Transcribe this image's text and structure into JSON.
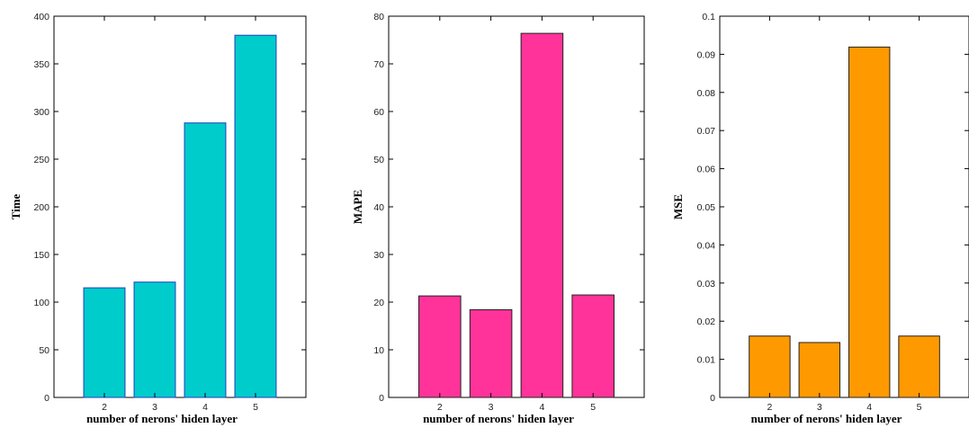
{
  "chart_data": [
    {
      "type": "bar",
      "categories": [
        "2",
        "3",
        "4",
        "5"
      ],
      "values": [
        115,
        121,
        288,
        380
      ],
      "xlabel": "number of nerons' hiden layer",
      "ylabel": "Time",
      "ylim": [
        0,
        400
      ],
      "yticks": [
        0,
        50,
        100,
        150,
        200,
        250,
        300,
        350,
        400
      ],
      "ytick_labels": [
        "0",
        "50",
        "100",
        "150",
        "200",
        "250",
        "300",
        "350",
        "400"
      ],
      "bar_color": "#00CCCC",
      "bar_edge_color": "#1f3fbf",
      "grid": false
    },
    {
      "type": "bar",
      "categories": [
        "2",
        "3",
        "4",
        "5"
      ],
      "values": [
        21.3,
        18.4,
        76.4,
        21.5
      ],
      "xlabel": "number of nerons' hiden layer",
      "ylabel": "MAPE",
      "ylim": [
        0,
        80
      ],
      "yticks": [
        0,
        10,
        20,
        30,
        40,
        50,
        60,
        70,
        80
      ],
      "ytick_labels": [
        "0",
        "10",
        "20",
        "30",
        "40",
        "50",
        "60",
        "70",
        "80"
      ],
      "bar_color": "#FF3399",
      "bar_edge_color": "#222222",
      "grid": false
    },
    {
      "type": "bar",
      "categories": [
        "2",
        "3",
        "4",
        "5"
      ],
      "values": [
        0.0161,
        0.0144,
        0.0919,
        0.0161
      ],
      "xlabel": "number of nerons' hiden layer",
      "ylabel": "MSE",
      "ylim": [
        0,
        0.1
      ],
      "yticks": [
        0,
        0.01,
        0.02,
        0.03,
        0.04,
        0.05,
        0.06,
        0.07,
        0.08,
        0.09,
        0.1
      ],
      "ytick_labels": [
        "0",
        "0.01",
        "0.02",
        "0.03",
        "0.04",
        "0.05",
        "0.06",
        "0.07",
        "0.08",
        "0.09",
        "0.1"
      ],
      "bar_color": "#FF9900",
      "bar_edge_color": "#222222",
      "grid": false
    }
  ]
}
